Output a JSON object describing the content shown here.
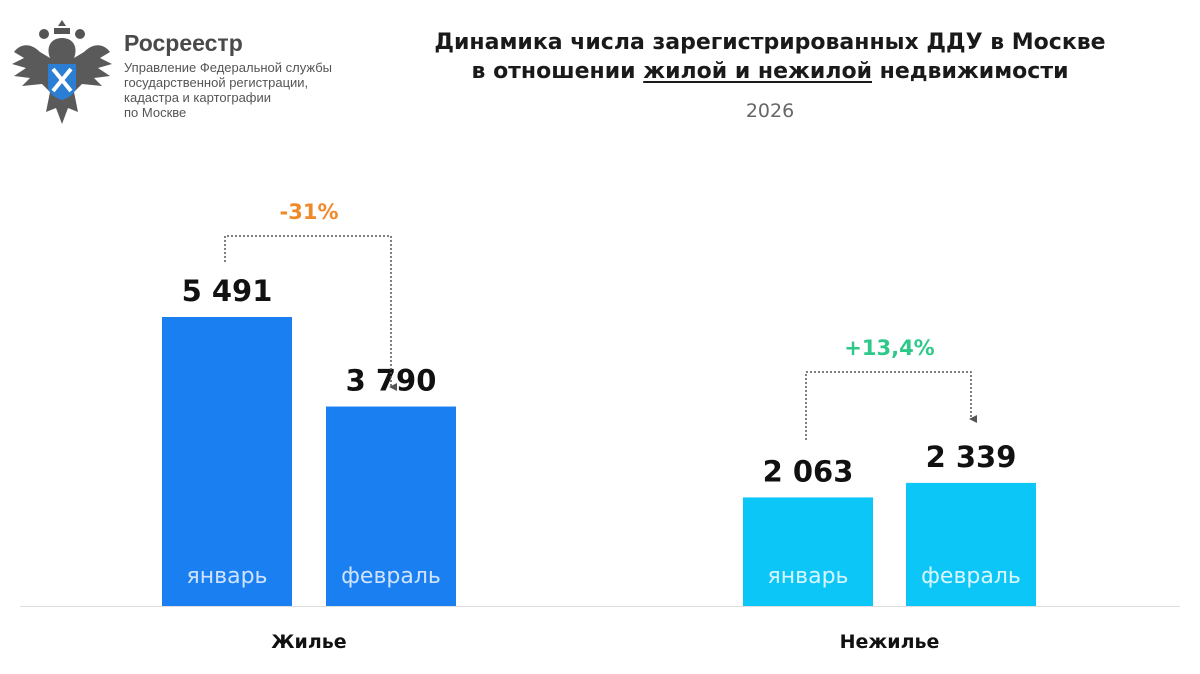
{
  "header": {
    "brand": "Росреестр",
    "subtitle_lines": [
      "Управление Федеральной службы",
      "государственной регистрации,",
      "кадастра и картографии",
      "по Москве"
    ],
    "logo_icon": "double-headed-eagle-emblem"
  },
  "chart_data": {
    "type": "bar",
    "title_line1": "Динамика числа зарегистрированных ДДУ в Москве",
    "title_line2_pre": "в отношении ",
    "title_line2_underlined": "жилой и нежилой",
    "title_line2_post": " недвижимости",
    "subtitle": "2026",
    "groups": [
      {
        "name": "Жилье",
        "color": "#1a7ff0",
        "label_color": "#cfe3ff",
        "bars": [
          {
            "month": "январь",
            "value": 5491,
            "label": "5 491"
          },
          {
            "month": "февраль",
            "value": 3790,
            "label": "3 790"
          }
        ],
        "change": "-31%",
        "change_color": "#f0892a"
      },
      {
        "name": "Нежилье",
        "color": "#0cc6f7",
        "label_color": "#d8f6ff",
        "bars": [
          {
            "month": "январь",
            "value": 2063,
            "label": "2 063"
          },
          {
            "month": "февраль",
            "value": 2339,
            "label": "2 339"
          }
        ],
        "change": "+13,4%",
        "change_color": "#2ec98a"
      }
    ],
    "ylim": [
      0,
      5491
    ],
    "grid": false
  }
}
